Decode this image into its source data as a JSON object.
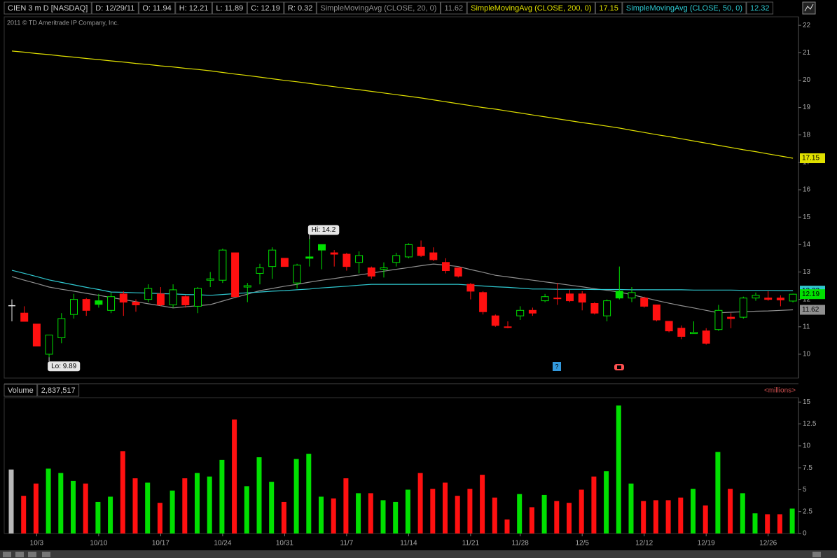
{
  "chart_data": [
    {
      "type": "candlestick",
      "title": "CIEN 3 m D [NASDAQ]",
      "header": [
        "D: 12/29/11",
        "O: 11.94",
        "H: 12.21",
        "L: 11.89",
        "C: 12.19",
        "R: 0.32"
      ],
      "subtitle": "2011 © TD Ameritrade IP Company, Inc.",
      "annotations": [
        "Hi: 14.2",
        "Lo: 9.89"
      ],
      "categories": [
        null,
        null,
        "10/3",
        null,
        null,
        null,
        null,
        "10/10",
        null,
        null,
        null,
        null,
        "10/17",
        null,
        null,
        null,
        null,
        "10/24",
        null,
        null,
        null,
        null,
        "10/31",
        null,
        null,
        null,
        null,
        "11/7",
        null,
        null,
        null,
        null,
        "11/14",
        null,
        null,
        null,
        null,
        "11/21",
        null,
        null,
        null,
        "11/28",
        null,
        null,
        null,
        null,
        "12/5",
        null,
        null,
        null,
        null,
        "12/12",
        null,
        null,
        null,
        null,
        "12/19",
        null,
        null,
        null,
        null,
        "12/26",
        null,
        null
      ],
      "open": [
        11.77,
        11.5,
        11.1,
        10.0,
        10.6,
        11.45,
        12.0,
        11.95,
        11.6,
        12.2,
        11.9,
        12.0,
        12.2,
        11.8,
        12.1,
        11.75,
        12.7,
        12.7,
        13.7,
        12.45,
        12.95,
        13.2,
        13.5,
        12.6,
        13.55,
        14.0,
        13.7,
        13.65,
        13.35,
        13.15,
        13.1,
        13.35,
        13.55,
        13.9,
        13.7,
        13.35,
        13.15,
        12.55,
        12.25,
        11.4,
        11.0,
        11.4,
        11.6,
        11.95,
        12.05,
        12.2,
        12.2,
        11.85,
        11.4,
        12.3,
        12.05,
        12.05,
        11.8,
        11.2,
        10.95,
        10.75,
        10.85,
        10.9,
        11.35,
        11.35,
        12.05,
        12.05,
        12.05,
        11.94
      ],
      "high": [
        12.0,
        11.75,
        11.1,
        10.7,
        11.5,
        12.2,
        12.05,
        12.2,
        12.25,
        12.3,
        12.0,
        12.55,
        12.45,
        12.55,
        12.15,
        12.45,
        13.0,
        13.85,
        13.7,
        12.6,
        13.3,
        13.9,
        13.5,
        13.3,
        14.2,
        14.0,
        13.8,
        13.7,
        13.75,
        13.2,
        13.35,
        13.7,
        14.05,
        14.15,
        13.9,
        13.5,
        13.15,
        12.6,
        12.3,
        11.45,
        11.2,
        11.75,
        11.7,
        12.2,
        12.6,
        12.35,
        12.3,
        11.9,
        12.0,
        13.2,
        12.45,
        12.1,
        11.8,
        11.2,
        11.05,
        11.2,
        10.95,
        11.8,
        11.5,
        12.1,
        12.25,
        12.3,
        12.15,
        12.21
      ],
      "low": [
        11.2,
        11.2,
        10.3,
        9.89,
        10.4,
        11.3,
        11.4,
        11.7,
        11.5,
        11.4,
        11.55,
        11.9,
        11.75,
        11.7,
        11.7,
        11.5,
        12.45,
        12.6,
        12.1,
        11.9,
        12.55,
        12.75,
        13.2,
        12.4,
        13.2,
        13.1,
        13.2,
        13.05,
        12.95,
        12.75,
        12.8,
        13.2,
        13.5,
        13.55,
        13.4,
        12.95,
        12.8,
        12.0,
        11.45,
        11.0,
        10.95,
        11.25,
        11.4,
        11.9,
        11.8,
        11.9,
        11.6,
        11.45,
        11.2,
        12.0,
        11.9,
        11.7,
        11.2,
        10.8,
        10.55,
        10.75,
        10.35,
        10.85,
        10.95,
        11.3,
        11.95,
        11.95,
        11.75,
        11.89
      ],
      "close": [
        11.77,
        11.2,
        10.3,
        10.7,
        11.3,
        12.0,
        11.6,
        11.82,
        12.1,
        11.9,
        11.8,
        12.4,
        11.8,
        12.35,
        11.8,
        12.4,
        12.75,
        13.8,
        12.1,
        12.5,
        13.15,
        13.8,
        13.2,
        13.25,
        13.5,
        13.8,
        13.65,
        13.2,
        13.6,
        12.85,
        13.15,
        13.6,
        14.0,
        13.6,
        13.45,
        13.05,
        12.85,
        12.3,
        11.55,
        11.05,
        10.98,
        11.6,
        11.5,
        12.1,
        12.03,
        11.95,
        11.9,
        11.5,
        11.95,
        12.05,
        12.25,
        11.75,
        11.25,
        10.85,
        10.65,
        10.8,
        10.4,
        11.6,
        11.3,
        12.05,
        12.15,
        12.0,
        11.98,
        12.19
      ],
      "up_color": "#00e000",
      "down_color": "#ff1010",
      "neutral_color": "#e8e8e8",
      "series": [
        {
          "name": "SimpleMovingAvg (CLOSE, 20, 0)",
          "color": "#8f8f8f",
          "values": [
            12.83,
            12.7,
            12.58,
            12.45,
            12.37,
            12.3,
            12.22,
            12.15,
            12.07,
            11.99,
            11.92,
            11.84,
            11.77,
            11.69,
            11.73,
            11.77,
            11.81,
            11.94,
            12.07,
            12.19,
            12.32,
            12.4,
            12.48,
            12.55,
            12.63,
            12.7,
            12.76,
            12.83,
            12.89,
            12.96,
            13.03,
            13.1,
            13.16,
            13.23,
            13.29,
            13.25,
            13.2,
            13.09,
            12.99,
            12.88,
            12.82,
            12.76,
            12.7,
            12.64,
            12.58,
            12.52,
            12.46,
            12.39,
            12.33,
            12.27,
            12.17,
            12.07,
            11.96,
            11.86,
            11.77,
            11.69,
            11.6,
            11.51,
            11.53,
            11.55,
            11.57,
            11.58,
            11.6,
            11.62
          ]
        },
        {
          "name": "SimpleMovingAvg (CLOSE, 200, 0)",
          "color": "#e0e000",
          "values": [
            21.06,
            21.02,
            20.97,
            20.93,
            20.88,
            20.84,
            20.79,
            20.75,
            20.7,
            20.66,
            20.61,
            20.57,
            20.52,
            20.48,
            20.43,
            20.39,
            20.34,
            20.28,
            20.22,
            20.17,
            20.11,
            20.05,
            19.99,
            19.94,
            19.88,
            19.82,
            19.76,
            19.7,
            19.65,
            19.59,
            19.53,
            19.47,
            19.41,
            19.35,
            19.28,
            19.21,
            19.14,
            19.07,
            19.0,
            18.94,
            18.87,
            18.8,
            18.73,
            18.66,
            18.59,
            18.52,
            18.45,
            18.39,
            18.32,
            18.25,
            18.17,
            18.09,
            18.01,
            17.94,
            17.86,
            17.78,
            17.7,
            17.62,
            17.54,
            17.46,
            17.39,
            17.31,
            17.23,
            17.15
          ]
        },
        {
          "name": "SimpleMovingAvg (CLOSE, 50, 0)",
          "color": "#2fc8d0",
          "values": [
            13.06,
            12.95,
            12.83,
            12.71,
            12.62,
            12.53,
            12.44,
            12.36,
            12.27,
            12.26,
            12.24,
            12.23,
            12.21,
            12.2,
            12.18,
            12.17,
            12.15,
            12.18,
            12.21,
            12.24,
            12.27,
            12.3,
            12.32,
            12.35,
            12.38,
            12.42,
            12.45,
            12.48,
            12.52,
            12.55,
            12.55,
            12.55,
            12.55,
            12.55,
            12.55,
            12.55,
            12.55,
            12.52,
            12.49,
            12.46,
            12.44,
            12.41,
            12.38,
            12.38,
            12.37,
            12.37,
            12.37,
            12.36,
            12.36,
            12.36,
            12.35,
            12.35,
            12.35,
            12.35,
            12.35,
            12.34,
            12.34,
            12.34,
            12.34,
            12.33,
            12.33,
            12.33,
            12.32,
            12.32
          ]
        }
      ],
      "ylim": [
        9.13,
        22.31
      ],
      "yticks": [
        10,
        11,
        12,
        13,
        14,
        15,
        16,
        17,
        18,
        19,
        20,
        21,
        22
      ]
    },
    {
      "type": "bar",
      "title": "Volume",
      "last_label": "2,837,517",
      "unit_label": "<millions>",
      "values": [
        7.3,
        4.3,
        5.7,
        7.4,
        6.9,
        6.0,
        5.7,
        3.6,
        4.2,
        9.4,
        6.3,
        5.8,
        3.5,
        4.9,
        6.3,
        6.9,
        6.5,
        8.4,
        13.0,
        5.4,
        8.7,
        5.9,
        3.6,
        8.5,
        9.1,
        4.2,
        4.0,
        6.3,
        4.6,
        4.6,
        3.8,
        3.6,
        5.0,
        6.9,
        5.1,
        5.8,
        4.3,
        5.1,
        6.7,
        4.1,
        1.6,
        4.5,
        3.0,
        4.4,
        3.7,
        3.5,
        5.0,
        6.5,
        7.1,
        14.6,
        5.7,
        3.7,
        3.8,
        3.8,
        4.1,
        5.1,
        3.2,
        9.3,
        5.1,
        4.6,
        2.3,
        2.2,
        2.2,
        2.84
      ],
      "neutral_color": "#b8b8b8",
      "ylim": [
        0,
        15.5
      ],
      "yticks": [
        0,
        {
          "value": 2.5,
          "label": "2.5"
        },
        5,
        {
          "value": 7.5,
          "label": "7.5"
        },
        10,
        {
          "value": 12.5,
          "label": "12.5"
        },
        15
      ]
    }
  ]
}
